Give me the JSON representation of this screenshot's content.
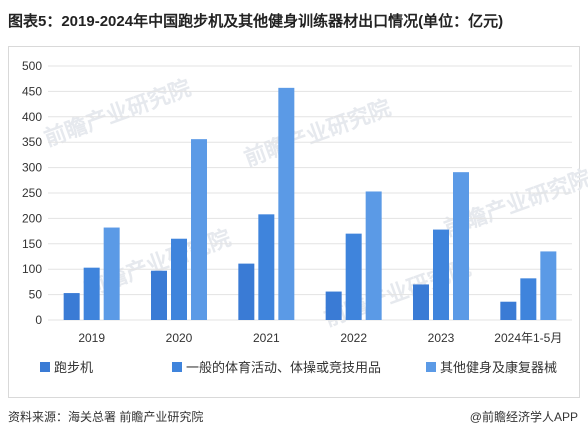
{
  "title": "图表5：2019-2024年中国跑步机及其他健身训练器材出口情况(单位：亿元)",
  "source": "资料来源：海关总署 前瞻产业研究院",
  "brand": "@前瞻经济学人APP",
  "watermark": "前瞻产业研究院",
  "colors": {
    "series1": "#3a7bd5",
    "series2": "#3f84dc",
    "series3": "#5b9ae6",
    "grid": "#e3e3e3",
    "axis_text": "#333333"
  },
  "chart_data": {
    "type": "bar",
    "categories": [
      "2019",
      "2020",
      "2021",
      "2022",
      "2023",
      "2024年1-5月"
    ],
    "series": [
      {
        "name": "跑步机",
        "values": [
          53,
          97,
          111,
          56,
          70,
          36
        ]
      },
      {
        "name": "一般的体育活动、体操或竞技用品",
        "values": [
          103,
          160,
          208,
          170,
          178,
          82
        ]
      },
      {
        "name": "其他健身及康复器械",
        "values": [
          182,
          356,
          457,
          253,
          291,
          135
        ]
      }
    ],
    "ylim": [
      0,
      500
    ],
    "yticks": [
      "0",
      "50",
      "100",
      "150",
      "200",
      "250",
      "300",
      "350",
      "400",
      "450",
      "500"
    ],
    "grid": true,
    "legend": "bottom"
  }
}
